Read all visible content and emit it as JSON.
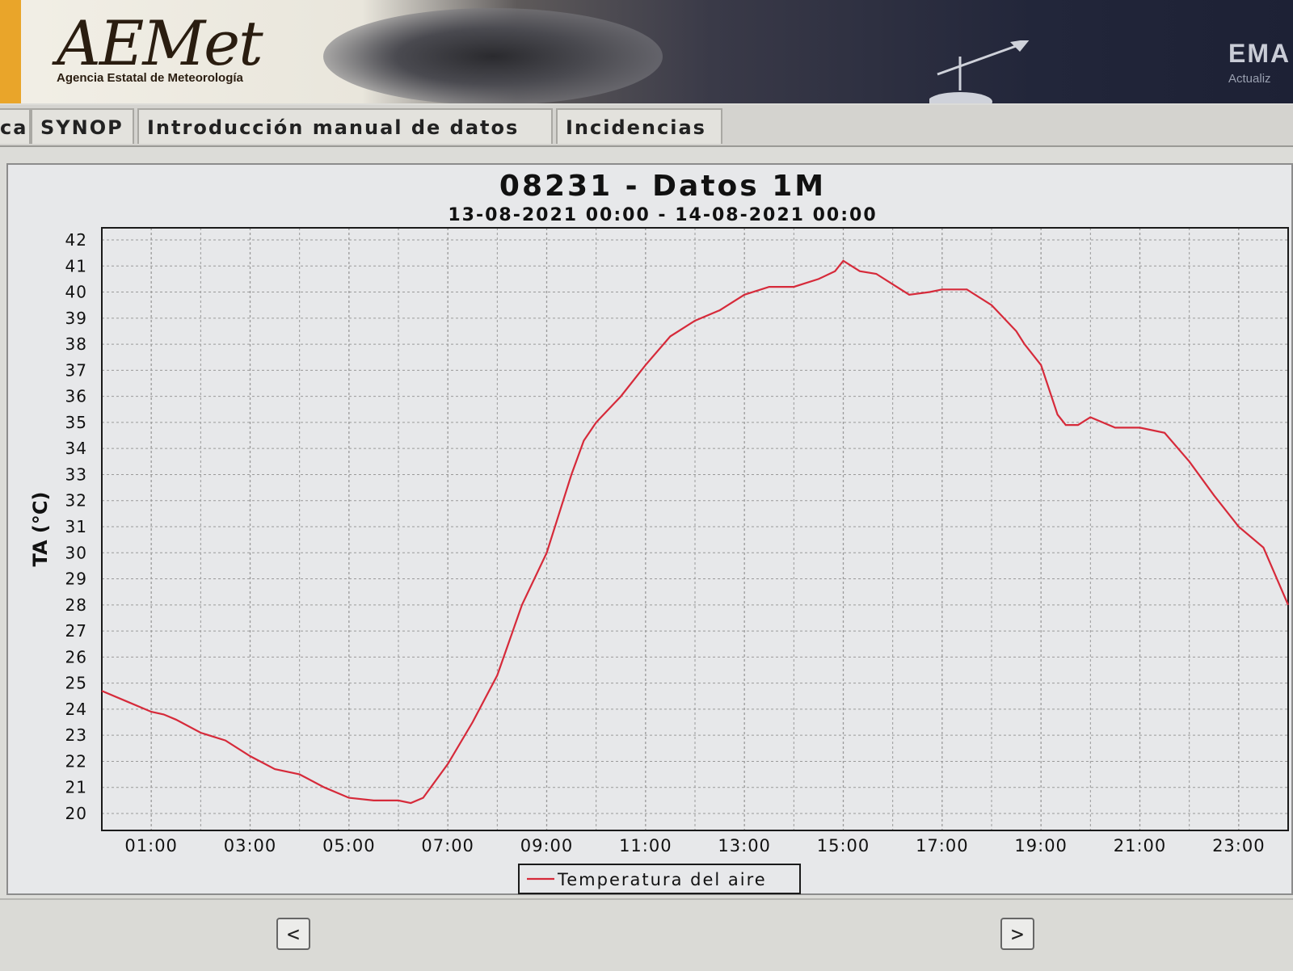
{
  "header": {
    "logo_text": "AEMet",
    "logo_subtitle": "Agencia Estatal de Meteorología",
    "right_code": "EMA",
    "right_subtitle": "Actualiz"
  },
  "tabs": [
    {
      "label": "ca"
    },
    {
      "label": "SYNOP"
    },
    {
      "label": "Introducción manual de datos"
    },
    {
      "label": "Incidencias"
    }
  ],
  "nav": {
    "prev_label": "<",
    "next_label": ">"
  },
  "colors": {
    "series": "#d62a3a",
    "grid": "#9a9a9a",
    "plot_bg": "#e7e8ea"
  },
  "chart_data": {
    "type": "line",
    "title": "08231 - Datos 1M",
    "subtitle": "13-08-2021 00:00 - 14-08-2021 00:00",
    "ylabel": "TA (°C)",
    "xlabel": "",
    "ylim": [
      20,
      42
    ],
    "xlim": [
      "00:00",
      "24:00"
    ],
    "y_ticks": [
      "20",
      "21",
      "22",
      "23",
      "24",
      "25",
      "26",
      "27",
      "28",
      "29",
      "30",
      "31",
      "32",
      "33",
      "34",
      "35",
      "36",
      "37",
      "38",
      "39",
      "40",
      "41",
      "42"
    ],
    "x_ticks": [
      "01:00",
      "03:00",
      "05:00",
      "07:00",
      "09:00",
      "11:00",
      "13:00",
      "15:00",
      "17:00",
      "19:00",
      "21:00",
      "23:00"
    ],
    "grid": true,
    "legend_position": "bottom-center",
    "series": [
      {
        "name": "Temperatura del aire",
        "color": "#d62a3a",
        "x": [
          "00:00",
          "00:30",
          "01:00",
          "01:15",
          "01:30",
          "02:00",
          "02:30",
          "03:00",
          "03:30",
          "04:00",
          "04:30",
          "05:00",
          "05:30",
          "06:00",
          "06:15",
          "06:30",
          "07:00",
          "07:30",
          "08:00",
          "08:30",
          "09:00",
          "09:15",
          "09:30",
          "09:45",
          "10:00",
          "10:30",
          "11:00",
          "11:30",
          "12:00",
          "12:30",
          "13:00",
          "13:30",
          "14:00",
          "14:30",
          "14:50",
          "15:00",
          "15:20",
          "15:40",
          "16:00",
          "16:20",
          "16:45",
          "17:00",
          "17:30",
          "18:00",
          "18:30",
          "18:40",
          "19:00",
          "19:20",
          "19:30",
          "19:45",
          "20:00",
          "20:30",
          "21:00",
          "21:30",
          "22:00",
          "22:30",
          "23:00",
          "23:30",
          "24:00"
        ],
        "y": [
          24.7,
          24.3,
          23.9,
          23.8,
          23.6,
          23.1,
          22.8,
          22.2,
          21.7,
          21.5,
          21.0,
          20.6,
          20.5,
          20.5,
          20.4,
          20.6,
          21.9,
          23.5,
          25.3,
          28.0,
          30.0,
          31.5,
          33.0,
          34.3,
          35.0,
          36.0,
          37.2,
          38.3,
          38.9,
          39.3,
          39.9,
          40.2,
          40.2,
          40.5,
          40.8,
          41.2,
          40.8,
          40.7,
          40.3,
          39.9,
          40.0,
          40.1,
          40.1,
          39.5,
          38.5,
          38.0,
          37.2,
          35.3,
          34.9,
          34.9,
          35.2,
          34.8,
          34.8,
          34.6,
          33.5,
          32.2,
          31.0,
          30.2,
          28.0
        ]
      }
    ]
  }
}
